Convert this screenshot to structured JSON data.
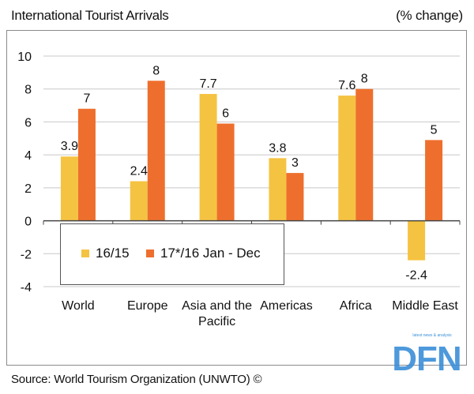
{
  "header": {
    "title": "International Tourist Arrivals",
    "unit": "(% change)"
  },
  "footer": {
    "source": "Source: World Tourism Organization (UNWTO) ©"
  },
  "logo": {
    "text": "DFN",
    "tagline": "latest news & analysis",
    "color": "#3a8fd8"
  },
  "chart_data": {
    "type": "bar",
    "title": "International Tourist Arrivals",
    "ylabel": "(% change)",
    "categories": [
      "World",
      "Europe",
      "Asia and the Pacific",
      "Americas",
      "Africa",
      "Middle East"
    ],
    "category_lines": [
      [
        "World"
      ],
      [
        "Europe"
      ],
      [
        "Asia and the",
        "Pacific"
      ],
      [
        "Americas"
      ],
      [
        "Africa"
      ],
      [
        "Middle East"
      ]
    ],
    "series": [
      {
        "name": "16/15",
        "values": [
          3.9,
          2.4,
          7.7,
          3.8,
          7.6,
          -2.4
        ],
        "labels": [
          "3.9",
          "2.4",
          "7.7",
          "3.8",
          "7.6",
          "-2.4"
        ],
        "color": "#f5c342"
      },
      {
        "name": "17*/16 Jan - Dec",
        "values": [
          6.8,
          8.5,
          5.9,
          2.9,
          8.0,
          4.9
        ],
        "labels": [
          "7",
          "8",
          "6",
          "3",
          "8",
          "5"
        ],
        "color": "#ee6f2d"
      }
    ],
    "ylim": [
      -4,
      10
    ],
    "yticks": [
      10,
      8,
      6,
      4,
      2,
      0,
      -2,
      -4
    ],
    "grid": true,
    "legend_position": "lower-left"
  }
}
